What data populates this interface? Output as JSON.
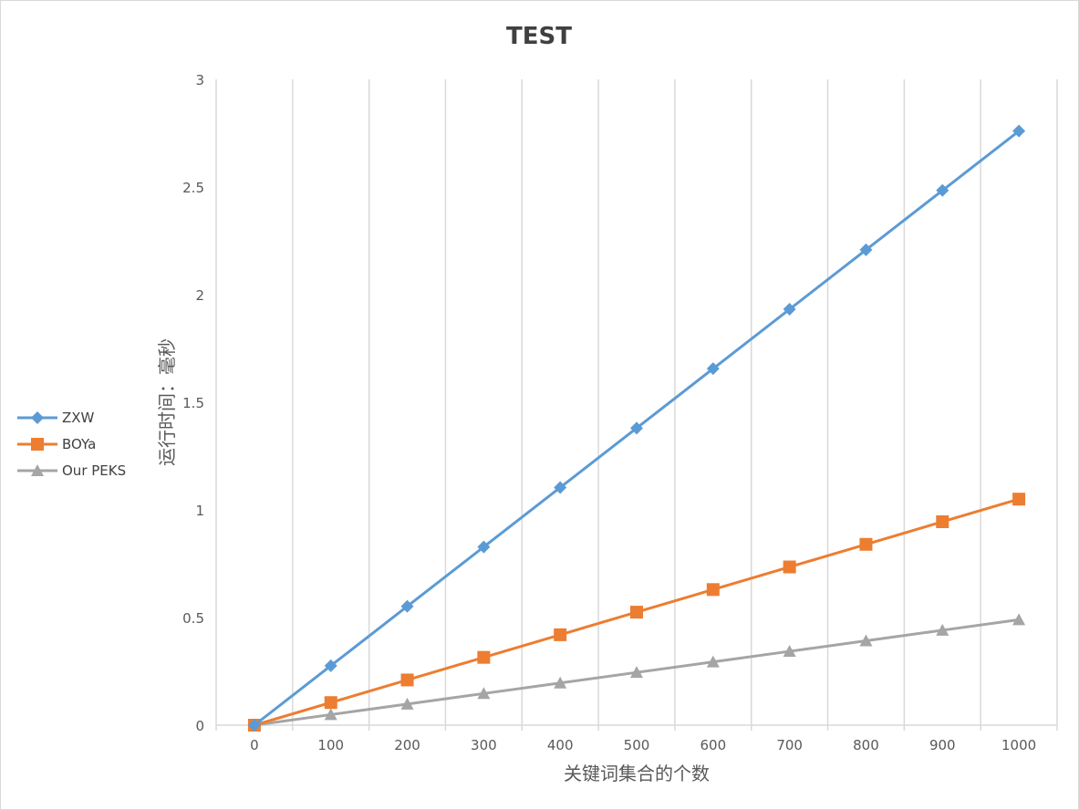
{
  "chart_data": {
    "type": "line",
    "title": "TEST",
    "xlabel": "关键词集合的个数",
    "ylabel": "运行时间：毫秒",
    "x": [
      0,
      100,
      200,
      300,
      400,
      500,
      600,
      700,
      800,
      900,
      1000
    ],
    "ylim": [
      0,
      3
    ],
    "yticks": [
      0,
      0.5,
      1,
      1.5,
      2,
      2.5,
      3
    ],
    "grid": "vertical",
    "legend_position": "left",
    "series": [
      {
        "name": "ZXW",
        "color": "#5b9bd5",
        "marker": "diamond",
        "values": [
          0,
          0.276,
          0.552,
          0.828,
          1.104,
          1.38,
          1.656,
          1.932,
          2.208,
          2.484,
          2.76
        ]
      },
      {
        "name": "BOYa",
        "color": "#ed7d31",
        "marker": "square",
        "values": [
          0,
          0.105,
          0.21,
          0.315,
          0.42,
          0.525,
          0.63,
          0.735,
          0.84,
          0.945,
          1.05
        ]
      },
      {
        "name": "Our PEKS",
        "color": "#a5a5a5",
        "marker": "triangle",
        "values": [
          0,
          0.049,
          0.098,
          0.147,
          0.196,
          0.245,
          0.294,
          0.343,
          0.392,
          0.441,
          0.49
        ]
      }
    ]
  }
}
